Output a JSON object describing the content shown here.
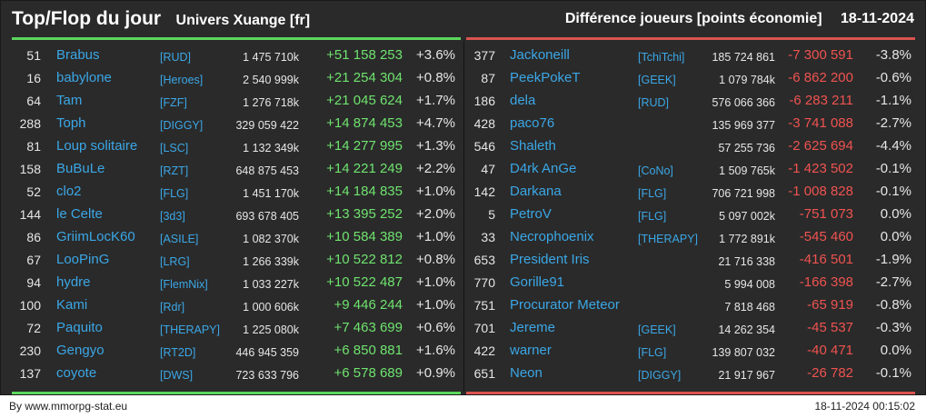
{
  "header": {
    "title": "Top/Flop du jour",
    "universe": "Univers Xuange [fr]",
    "metric": "Différence joueurs [points économie]",
    "date": "18-11-2024"
  },
  "colors": {
    "gain": "#6fe36f",
    "loss": "#ef5350",
    "name": "#3ba7e6",
    "background": "#2a2a2a"
  },
  "top": [
    {
      "rank": "51",
      "name": "Brabus",
      "guild": "[RUD]",
      "points": "1 475 710k",
      "diff": "+51 158 253",
      "pct": "+3.6%"
    },
    {
      "rank": "16",
      "name": "babylone",
      "guild": "[Heroes]",
      "points": "2 540 999k",
      "diff": "+21 254 304",
      "pct": "+0.8%"
    },
    {
      "rank": "64",
      "name": "Tam",
      "guild": "[FZF]",
      "points": "1 276 718k",
      "diff": "+21 045 624",
      "pct": "+1.7%"
    },
    {
      "rank": "288",
      "name": "Toph",
      "guild": "[DIGGY]",
      "points": "329 059 422",
      "diff": "+14 874 453",
      "pct": "+4.7%"
    },
    {
      "rank": "81",
      "name": "Loup solitaire",
      "guild": "[LSC]",
      "points": "1 132 349k",
      "diff": "+14 277 995",
      "pct": "+1.3%"
    },
    {
      "rank": "158",
      "name": "BuBuLe",
      "guild": "[RZT]",
      "points": "648 875 453",
      "diff": "+14 221 249",
      "pct": "+2.2%"
    },
    {
      "rank": "52",
      "name": "clo2",
      "guild": "[FLG]",
      "points": "1 451 170k",
      "diff": "+14 184 835",
      "pct": "+1.0%"
    },
    {
      "rank": "144",
      "name": "le Celte",
      "guild": "[3d3]",
      "points": "693 678 405",
      "diff": "+13 395 252",
      "pct": "+2.0%"
    },
    {
      "rank": "86",
      "name": "GriimLocK60",
      "guild": "[ASILE]",
      "points": "1 082 370k",
      "diff": "+10 584 389",
      "pct": "+1.0%"
    },
    {
      "rank": "67",
      "name": "LooPinG",
      "guild": "[LRG]",
      "points": "1 266 339k",
      "diff": "+10 522 812",
      "pct": "+0.8%"
    },
    {
      "rank": "94",
      "name": "hydre",
      "guild": "[FlemNix]",
      "points": "1 033 227k",
      "diff": "+10 522 487",
      "pct": "+1.0%"
    },
    {
      "rank": "100",
      "name": "Kami",
      "guild": "[Rdr]",
      "points": "1 000 606k",
      "diff": "+9 446 244",
      "pct": "+1.0%"
    },
    {
      "rank": "72",
      "name": "Paquito",
      "guild": "[THERAPY]",
      "points": "1 225 080k",
      "diff": "+7 463 699",
      "pct": "+0.6%"
    },
    {
      "rank": "230",
      "name": "Gengyo",
      "guild": "[RT2D]",
      "points": "446 945 359",
      "diff": "+6 850 881",
      "pct": "+1.6%"
    },
    {
      "rank": "137",
      "name": "coyote",
      "guild": "[DWS]",
      "points": "723 633 796",
      "diff": "+6 578 689",
      "pct": "+0.9%"
    }
  ],
  "flop": [
    {
      "rank": "377",
      "name": "Jackoneill",
      "guild": "[TchiTchi]",
      "points": "185 724 861",
      "diff": "-7 300 591",
      "pct": "-3.8%"
    },
    {
      "rank": "87",
      "name": "PeekPokeT",
      "guild": "[GEEK]",
      "points": "1 079 784k",
      "diff": "-6 862 200",
      "pct": "-0.6%"
    },
    {
      "rank": "186",
      "name": "dela",
      "guild": "[RUD]",
      "points": "576 066 366",
      "diff": "-6 283 211",
      "pct": "-1.1%"
    },
    {
      "rank": "428",
      "name": "paco76",
      "guild": "",
      "points": "135 969 377",
      "diff": "-3 741 088",
      "pct": "-2.7%"
    },
    {
      "rank": "546",
      "name": "Shaleth",
      "guild": "",
      "points": "57 255 736",
      "diff": "-2 625 694",
      "pct": "-4.4%"
    },
    {
      "rank": "47",
      "name": "D4rk AnGe",
      "guild": "[CoNo]",
      "points": "1 509 765k",
      "diff": "-1 423 502",
      "pct": "-0.1%"
    },
    {
      "rank": "142",
      "name": "Darkana",
      "guild": "[FLG]",
      "points": "706 721 998",
      "diff": "-1 008 828",
      "pct": "-0.1%"
    },
    {
      "rank": "5",
      "name": "PetroV",
      "guild": "[FLG]",
      "points": "5 097 002k",
      "diff": "-751 073",
      "pct": "0.0%"
    },
    {
      "rank": "33",
      "name": "Necrophoenix",
      "guild": "[THERAPY]",
      "points": "1 772 891k",
      "diff": "-545 460",
      "pct": "0.0%"
    },
    {
      "rank": "653",
      "name": "President Iris",
      "guild": "",
      "points": "21 716 338",
      "diff": "-416 501",
      "pct": "-1.9%"
    },
    {
      "rank": "770",
      "name": "Gorille91",
      "guild": "",
      "points": "5 994 008",
      "diff": "-166 398",
      "pct": "-2.7%"
    },
    {
      "rank": "751",
      "name": "Procurator Meteor",
      "guild": "",
      "points": "7 818 468",
      "diff": "-65 919",
      "pct": "-0.8%"
    },
    {
      "rank": "701",
      "name": "Jereme",
      "guild": "[GEEK]",
      "points": "14 262 354",
      "diff": "-45 537",
      "pct": "-0.3%"
    },
    {
      "rank": "422",
      "name": "warner",
      "guild": "[FLG]",
      "points": "139 807 032",
      "diff": "-40 471",
      "pct": "0.0%"
    },
    {
      "rank": "651",
      "name": "Neon",
      "guild": "[DIGGY]",
      "points": "21 917 967",
      "diff": "-26 782",
      "pct": "-0.1%"
    }
  ],
  "footer": {
    "source": "By www.mmorpg-stat.eu",
    "timestamp": "18-11-2024 00:15:02"
  }
}
